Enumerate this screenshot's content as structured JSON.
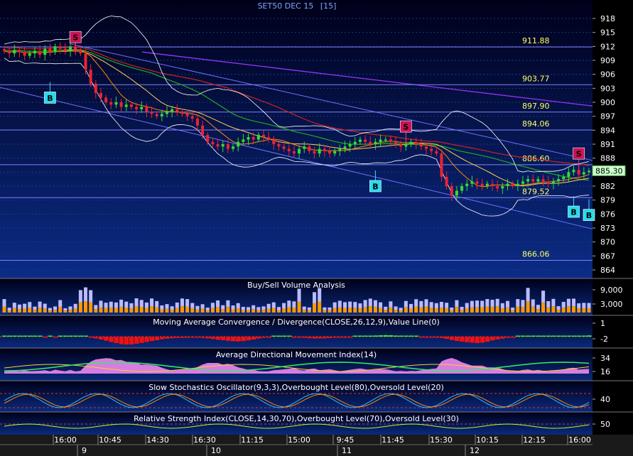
{
  "chart_data": {
    "type": "candlestick",
    "title": "SET50 DEC 15",
    "interval": "[15]",
    "colors": {
      "up": "#33dd33",
      "down": "#ee2233",
      "background_top": "#000018",
      "background_bottom": "#0a2a7a",
      "axis_text": "#ffffff",
      "level_text": "#ffff66"
    },
    "price_axis": {
      "min": 862.5,
      "max": 919.5,
      "ticks": [
        "918",
        "915",
        "912",
        "909",
        "906",
        "903",
        "900",
        "897",
        "894",
        "891",
        "888",
        "885",
        "882",
        "879",
        "876",
        "873",
        "870",
        "867",
        "864"
      ]
    },
    "last_price": "885.30",
    "horizontal_levels": [
      {
        "value": 911.88,
        "label": "911.88"
      },
      {
        "value": 903.77,
        "label": "903.77"
      },
      {
        "value": 897.9,
        "label": "897.90"
      },
      {
        "value": 894.06,
        "label": "894.06"
      },
      {
        "value": 886.6,
        "label": "886.60"
      },
      {
        "value": 879.52,
        "label": "879.52"
      },
      {
        "value": 866.06,
        "label": "866.06"
      }
    ],
    "signals": [
      {
        "type": "S",
        "bar": 14,
        "price": 914.0
      },
      {
        "type": "B",
        "bar": 9,
        "price": 901.0
      },
      {
        "type": "B",
        "bar": 73,
        "price": 882.0
      },
      {
        "type": "S",
        "bar": 79,
        "price": 894.8
      },
      {
        "type": "S",
        "bar": 113,
        "price": 889.0
      },
      {
        "type": "B",
        "bar": 112,
        "price": 876.5
      },
      {
        "type": "B",
        "bar": 115,
        "price": 875.8
      }
    ],
    "time_axis": {
      "labels": [
        "16:00",
        "10:45",
        "14:30",
        "16:30",
        "11:15",
        "15:00",
        "9:45",
        "11:45",
        "15:30",
        "10:15",
        "12:15",
        "16:00"
      ],
      "days": [
        "9",
        "10",
        "11",
        "12"
      ]
    },
    "closes": [
      911,
      910.5,
      911.2,
      910.8,
      910,
      910.5,
      911,
      910.2,
      911.5,
      910.8,
      912,
      911.5,
      911,
      912,
      911,
      910.5,
      907,
      904,
      902,
      901,
      900,
      899.5,
      900,
      899,
      899.5,
      899,
      898.5,
      899,
      898,
      897.5,
      897,
      897.5,
      898,
      898.5,
      898,
      897.5,
      897,
      896.5,
      895,
      893,
      891.5,
      891,
      890.5,
      891,
      890,
      890.5,
      891.5,
      892,
      892.5,
      892,
      893,
      892.5,
      892,
      891,
      890.5,
      890,
      889.5,
      889,
      890,
      890.5,
      889.5,
      889,
      890,
      889.5,
      889,
      889.5,
      890,
      890.5,
      891,
      891.5,
      892,
      891.5,
      891,
      891.5,
      892,
      892,
      891.5,
      891,
      890.5,
      891,
      891.5,
      891,
      890.5,
      890,
      889.5,
      889,
      884,
      882,
      880,
      881,
      882,
      882.5,
      883,
      882.5,
      882,
      882.5,
      882,
      881.5,
      882,
      882.5,
      882,
      882.5,
      883,
      883.5,
      883,
      883.5,
      883,
      882.5,
      883,
      883.5,
      884,
      885,
      885.5,
      884.5,
      885,
      885.3
    ],
    "panels": [
      {
        "title": "Buy/Sell Volume Analysis",
        "ticks": [
          "9,000",
          "3,000"
        ],
        "colors": {
          "buy": "#ff9900",
          "sell": "#aaaaff"
        }
      },
      {
        "title": "Moving Average Convergence / Divergence(CLOSE,26,12,9),Value Line(0)",
        "ticks": [
          "1",
          "-2"
        ]
      },
      {
        "title": "Average Directional Movement Index(14)",
        "ticks": [
          "34",
          "16"
        ]
      },
      {
        "title": "Slow Stochastics Oscillator(9,3,3),Overbought Level(80),Oversold Level(20)",
        "ticks": [
          "40"
        ]
      },
      {
        "title": "Relative Strength Index(CLOSE,14,30,70),Overbought Level(70),Oversold Level(30)",
        "ticks": [
          "50"
        ]
      }
    ]
  }
}
